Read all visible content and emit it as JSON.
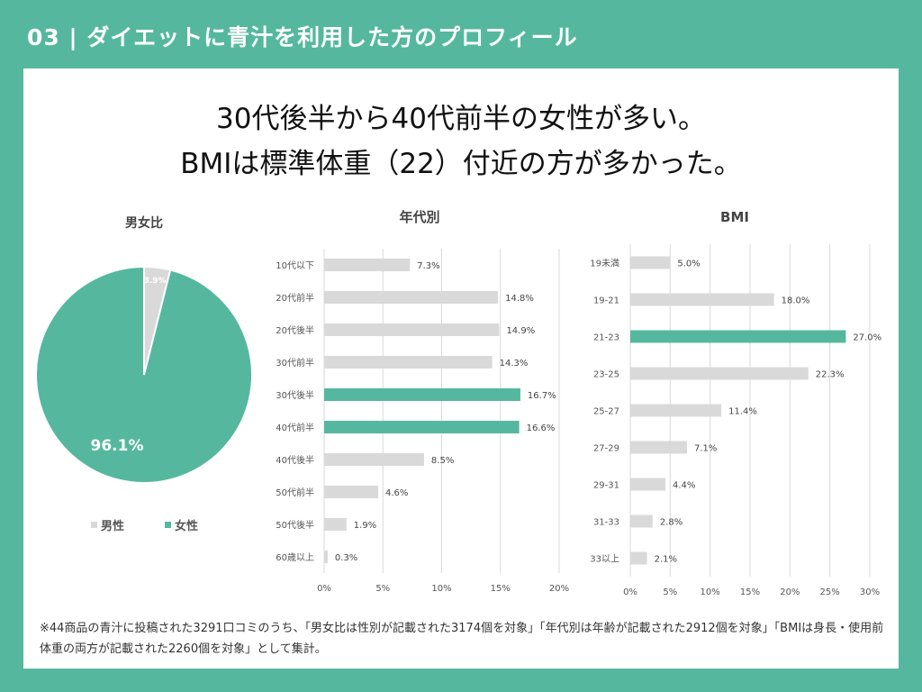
{
  "header": {
    "title": "03 | ダイエットに青汁を利用した方のプロフィール"
  },
  "headline": {
    "line1": "30代後半から40代前半の女性が多い。",
    "line2": "BMIは標準体重（22）付近の方が多かった。"
  },
  "colors": {
    "accent": "#55b89e",
    "gray": "#d9d9d9",
    "panel": "#ffffff"
  },
  "chart_data": [
    {
      "type": "pie",
      "title": "男女比",
      "labels": [
        "男性",
        "女性"
      ],
      "values": [
        3.9,
        96.1
      ],
      "value_labels": [
        "3.9%",
        "96.1%"
      ],
      "colors": [
        "#d9d9d9",
        "#55b89e"
      ],
      "legend": "bottom"
    },
    {
      "type": "bar",
      "orientation": "horizontal",
      "title": "年代別",
      "categories": [
        "10代以下",
        "20代前半",
        "20代後半",
        "30代前半",
        "30代後半",
        "40代前半",
        "40代後半",
        "50代前半",
        "50代後半",
        "60歳以上"
      ],
      "values": [
        7.3,
        14.8,
        14.9,
        14.3,
        16.7,
        16.6,
        8.5,
        4.6,
        1.9,
        0.3
      ],
      "highlight": [
        "30代後半",
        "40代前半"
      ],
      "xlim": [
        0,
        20
      ],
      "ticks": [
        "0%",
        "5%",
        "10%",
        "15%",
        "20%"
      ]
    },
    {
      "type": "bar",
      "orientation": "horizontal",
      "title": "BMI",
      "categories": [
        "19未満",
        "19-21",
        "21-23",
        "23-25",
        "25-27",
        "27-29",
        "29-31",
        "31-33",
        "33以上"
      ],
      "values": [
        5.0,
        18.0,
        27.0,
        22.3,
        11.4,
        7.1,
        4.4,
        2.8,
        2.1
      ],
      "highlight": [
        "21-23"
      ],
      "xlim": [
        0,
        30
      ],
      "ticks": [
        "0%",
        "5%",
        "10%",
        "15%",
        "20%",
        "25%",
        "30%"
      ]
    }
  ],
  "footnote": "※44商品の青汁に投稿された3291口コミのうち、「男女比は性別が記載された3174個を対象」「年代別は年齢が記載された2912個を対象」「BMIは身長・使用前体重の両方が記載された2260個を対象」として集計。"
}
